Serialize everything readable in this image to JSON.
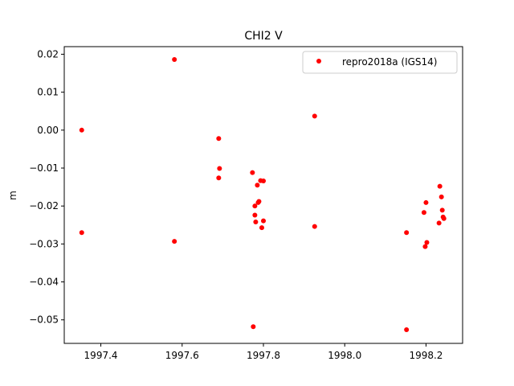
{
  "chart_data": {
    "type": "scatter",
    "title": "CHI2 V",
    "xlabel": "",
    "ylabel": "m",
    "xlim": [
      1997.31,
      1998.29
    ],
    "ylim": [
      -0.0562,
      0.022
    ],
    "xticks": [
      1997.4,
      1997.6,
      1997.8,
      1998.0,
      1998.2
    ],
    "xtick_labels": [
      "1997.4",
      "1997.6",
      "1997.8",
      "1998.0",
      "1998.2"
    ],
    "yticks": [
      0.02,
      0.01,
      0.0,
      -0.01,
      -0.02,
      -0.03,
      -0.04,
      -0.05
    ],
    "ytick_labels": [
      "0.02",
      "0.01",
      "0.00",
      "−0.01",
      "−0.02",
      "−0.03",
      "−0.04",
      "−0.05"
    ],
    "grid": false,
    "legend_position": "top-right",
    "series": [
      {
        "name": "repro2018a (IGS14)",
        "color": "#ff0000",
        "marker": "circle",
        "points": [
          [
            1997.353,
            0.0
          ],
          [
            1997.353,
            -0.027
          ],
          [
            1997.581,
            0.0186
          ],
          [
            1997.581,
            -0.0293
          ],
          [
            1997.69,
            -0.0022
          ],
          [
            1997.692,
            -0.0101
          ],
          [
            1997.69,
            -0.0126
          ],
          [
            1997.773,
            -0.0112
          ],
          [
            1997.775,
            -0.0518
          ],
          [
            1997.779,
            -0.02
          ],
          [
            1997.779,
            -0.0224
          ],
          [
            1997.781,
            -0.0242
          ],
          [
            1997.785,
            -0.0145
          ],
          [
            1997.787,
            -0.0191
          ],
          [
            1997.789,
            -0.0188
          ],
          [
            1997.793,
            -0.0133
          ],
          [
            1997.796,
            -0.0257
          ],
          [
            1997.8,
            -0.0134
          ],
          [
            1997.8,
            -0.0239
          ],
          [
            1997.926,
            0.0037
          ],
          [
            1997.926,
            -0.0254
          ],
          [
            1998.152,
            -0.027
          ],
          [
            1998.152,
            -0.0526
          ],
          [
            1998.195,
            -0.0217
          ],
          [
            1998.198,
            -0.0307
          ],
          [
            1998.2,
            -0.0191
          ],
          [
            1998.202,
            -0.0296
          ],
          [
            1998.232,
            -0.0245
          ],
          [
            1998.234,
            -0.0148
          ],
          [
            1998.238,
            -0.0176
          ],
          [
            1998.24,
            -0.0211
          ],
          [
            1998.242,
            -0.0229
          ],
          [
            1998.244,
            -0.0233
          ]
        ]
      }
    ]
  }
}
